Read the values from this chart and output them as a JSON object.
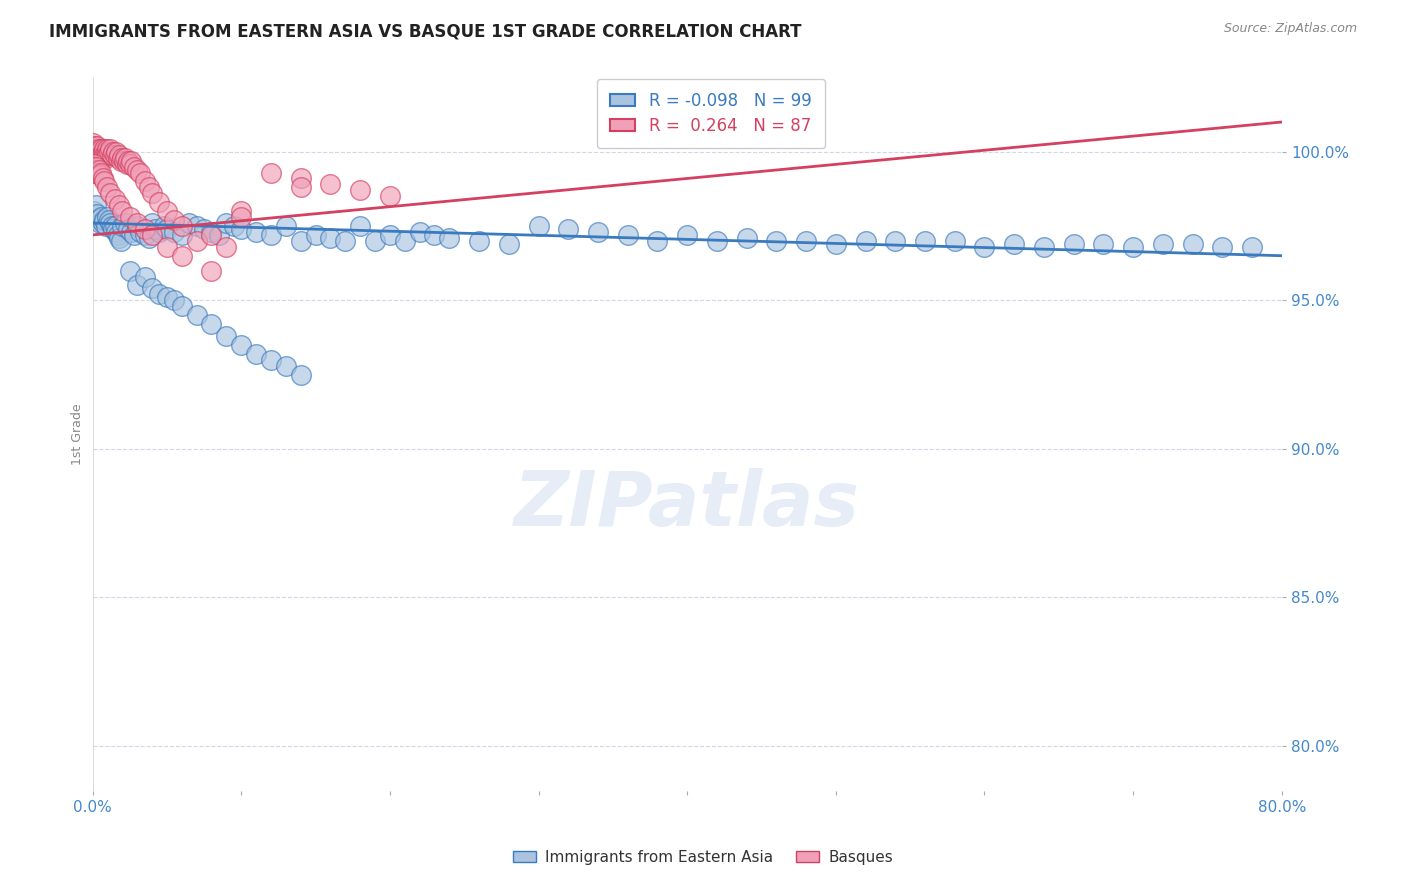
{
  "title": "IMMIGRANTS FROM EASTERN ASIA VS BASQUE 1ST GRADE CORRELATION CHART",
  "source_text": "Source: ZipAtlas.com",
  "ylabel": "1st Grade",
  "yticks": [
    0.8,
    0.85,
    0.9,
    0.95,
    1.0
  ],
  "ytick_labels": [
    "80.0%",
    "85.0%",
    "90.0%",
    "95.0%",
    "100.0%"
  ],
  "xlim": [
    0.0,
    0.8
  ],
  "ylim": [
    0.785,
    1.025
  ],
  "legend_r_blue": "-0.098",
  "legend_n_blue": "99",
  "legend_r_pink": "0.264",
  "legend_n_pink": "87",
  "blue_color": "#aac4e0",
  "pink_color": "#f0a0b8",
  "trendline_blue": "#3a7abf",
  "trendline_pink": "#d44060",
  "watermark": "ZIPatlas",
  "blue_scatter_x": [
    0.001,
    0.002,
    0.003,
    0.004,
    0.005,
    0.006,
    0.007,
    0.008,
    0.009,
    0.01,
    0.011,
    0.012,
    0.013,
    0.014,
    0.015,
    0.016,
    0.017,
    0.018,
    0.019,
    0.02,
    0.022,
    0.024,
    0.026,
    0.028,
    0.03,
    0.032,
    0.035,
    0.038,
    0.04,
    0.042,
    0.045,
    0.048,
    0.05,
    0.055,
    0.06,
    0.065,
    0.07,
    0.075,
    0.08,
    0.085,
    0.09,
    0.095,
    0.1,
    0.11,
    0.12,
    0.13,
    0.14,
    0.15,
    0.16,
    0.17,
    0.18,
    0.19,
    0.2,
    0.21,
    0.22,
    0.23,
    0.24,
    0.26,
    0.28,
    0.3,
    0.32,
    0.34,
    0.36,
    0.38,
    0.4,
    0.42,
    0.44,
    0.46,
    0.48,
    0.5,
    0.52,
    0.54,
    0.56,
    0.58,
    0.6,
    0.62,
    0.64,
    0.66,
    0.68,
    0.7,
    0.72,
    0.74,
    0.76,
    0.78,
    0.025,
    0.03,
    0.035,
    0.04,
    0.045,
    0.05,
    0.055,
    0.06,
    0.07,
    0.08,
    0.09,
    0.1,
    0.11,
    0.12,
    0.13,
    0.14
  ],
  "blue_scatter_y": [
    0.98,
    0.982,
    0.979,
    0.9775,
    0.976,
    0.978,
    0.976,
    0.977,
    0.975,
    0.978,
    0.977,
    0.976,
    0.975,
    0.974,
    0.975,
    0.973,
    0.972,
    0.971,
    0.97,
    0.975,
    0.976,
    0.974,
    0.973,
    0.972,
    0.975,
    0.973,
    0.972,
    0.971,
    0.976,
    0.974,
    0.973,
    0.975,
    0.974,
    0.973,
    0.972,
    0.976,
    0.975,
    0.974,
    0.973,
    0.972,
    0.976,
    0.975,
    0.974,
    0.973,
    0.972,
    0.975,
    0.97,
    0.972,
    0.971,
    0.97,
    0.975,
    0.97,
    0.972,
    0.97,
    0.973,
    0.972,
    0.971,
    0.97,
    0.969,
    0.975,
    0.974,
    0.973,
    0.972,
    0.97,
    0.972,
    0.97,
    0.971,
    0.97,
    0.97,
    0.969,
    0.97,
    0.97,
    0.97,
    0.97,
    0.968,
    0.969,
    0.968,
    0.969,
    0.969,
    0.968,
    0.969,
    0.969,
    0.968,
    0.968,
    0.96,
    0.955,
    0.958,
    0.954,
    0.952,
    0.951,
    0.95,
    0.948,
    0.945,
    0.942,
    0.938,
    0.935,
    0.932,
    0.93,
    0.928,
    0.925
  ],
  "pink_scatter_x": [
    0.0,
    0.0,
    0.0,
    0.0,
    0.001,
    0.001,
    0.001,
    0.002,
    0.002,
    0.002,
    0.003,
    0.003,
    0.003,
    0.004,
    0.004,
    0.005,
    0.005,
    0.006,
    0.006,
    0.007,
    0.007,
    0.008,
    0.008,
    0.009,
    0.009,
    0.01,
    0.01,
    0.011,
    0.012,
    0.013,
    0.014,
    0.015,
    0.016,
    0.017,
    0.018,
    0.019,
    0.02,
    0.021,
    0.022,
    0.023,
    0.024,
    0.025,
    0.026,
    0.028,
    0.03,
    0.032,
    0.035,
    0.038,
    0.04,
    0.045,
    0.05,
    0.055,
    0.06,
    0.07,
    0.08,
    0.09,
    0.1,
    0.12,
    0.14,
    0.16,
    0.18,
    0.2,
    0.0,
    0.0,
    0.001,
    0.001,
    0.002,
    0.003,
    0.004,
    0.005,
    0.006,
    0.007,
    0.008,
    0.01,
    0.012,
    0.015,
    0.018,
    0.02,
    0.025,
    0.03,
    0.035,
    0.04,
    0.05,
    0.06,
    0.08,
    0.1,
    0.14
  ],
  "pink_scatter_y": [
    1.003,
    1.001,
    0.999,
    0.997,
    1.002,
    1.0,
    0.998,
    1.001,
    0.999,
    0.997,
    1.002,
    1.0,
    0.998,
    1.001,
    0.999,
    1.0,
    0.998,
    1.001,
    0.999,
    1.0,
    0.998,
    1.001,
    0.999,
    1.0,
    0.998,
    1.001,
    0.999,
    1.0,
    1.001,
    0.999,
    1.0,
    0.999,
    1.0,
    0.998,
    0.999,
    0.997,
    0.998,
    0.997,
    0.998,
    0.996,
    0.997,
    0.996,
    0.997,
    0.995,
    0.994,
    0.993,
    0.99,
    0.988,
    0.986,
    0.983,
    0.98,
    0.977,
    0.975,
    0.97,
    0.972,
    0.968,
    0.98,
    0.993,
    0.991,
    0.989,
    0.987,
    0.985,
    0.995,
    0.993,
    0.996,
    0.994,
    0.995,
    0.993,
    0.994,
    0.992,
    0.993,
    0.991,
    0.99,
    0.988,
    0.986,
    0.984,
    0.982,
    0.98,
    0.978,
    0.976,
    0.974,
    0.972,
    0.968,
    0.965,
    0.96,
    0.978,
    0.988
  ]
}
